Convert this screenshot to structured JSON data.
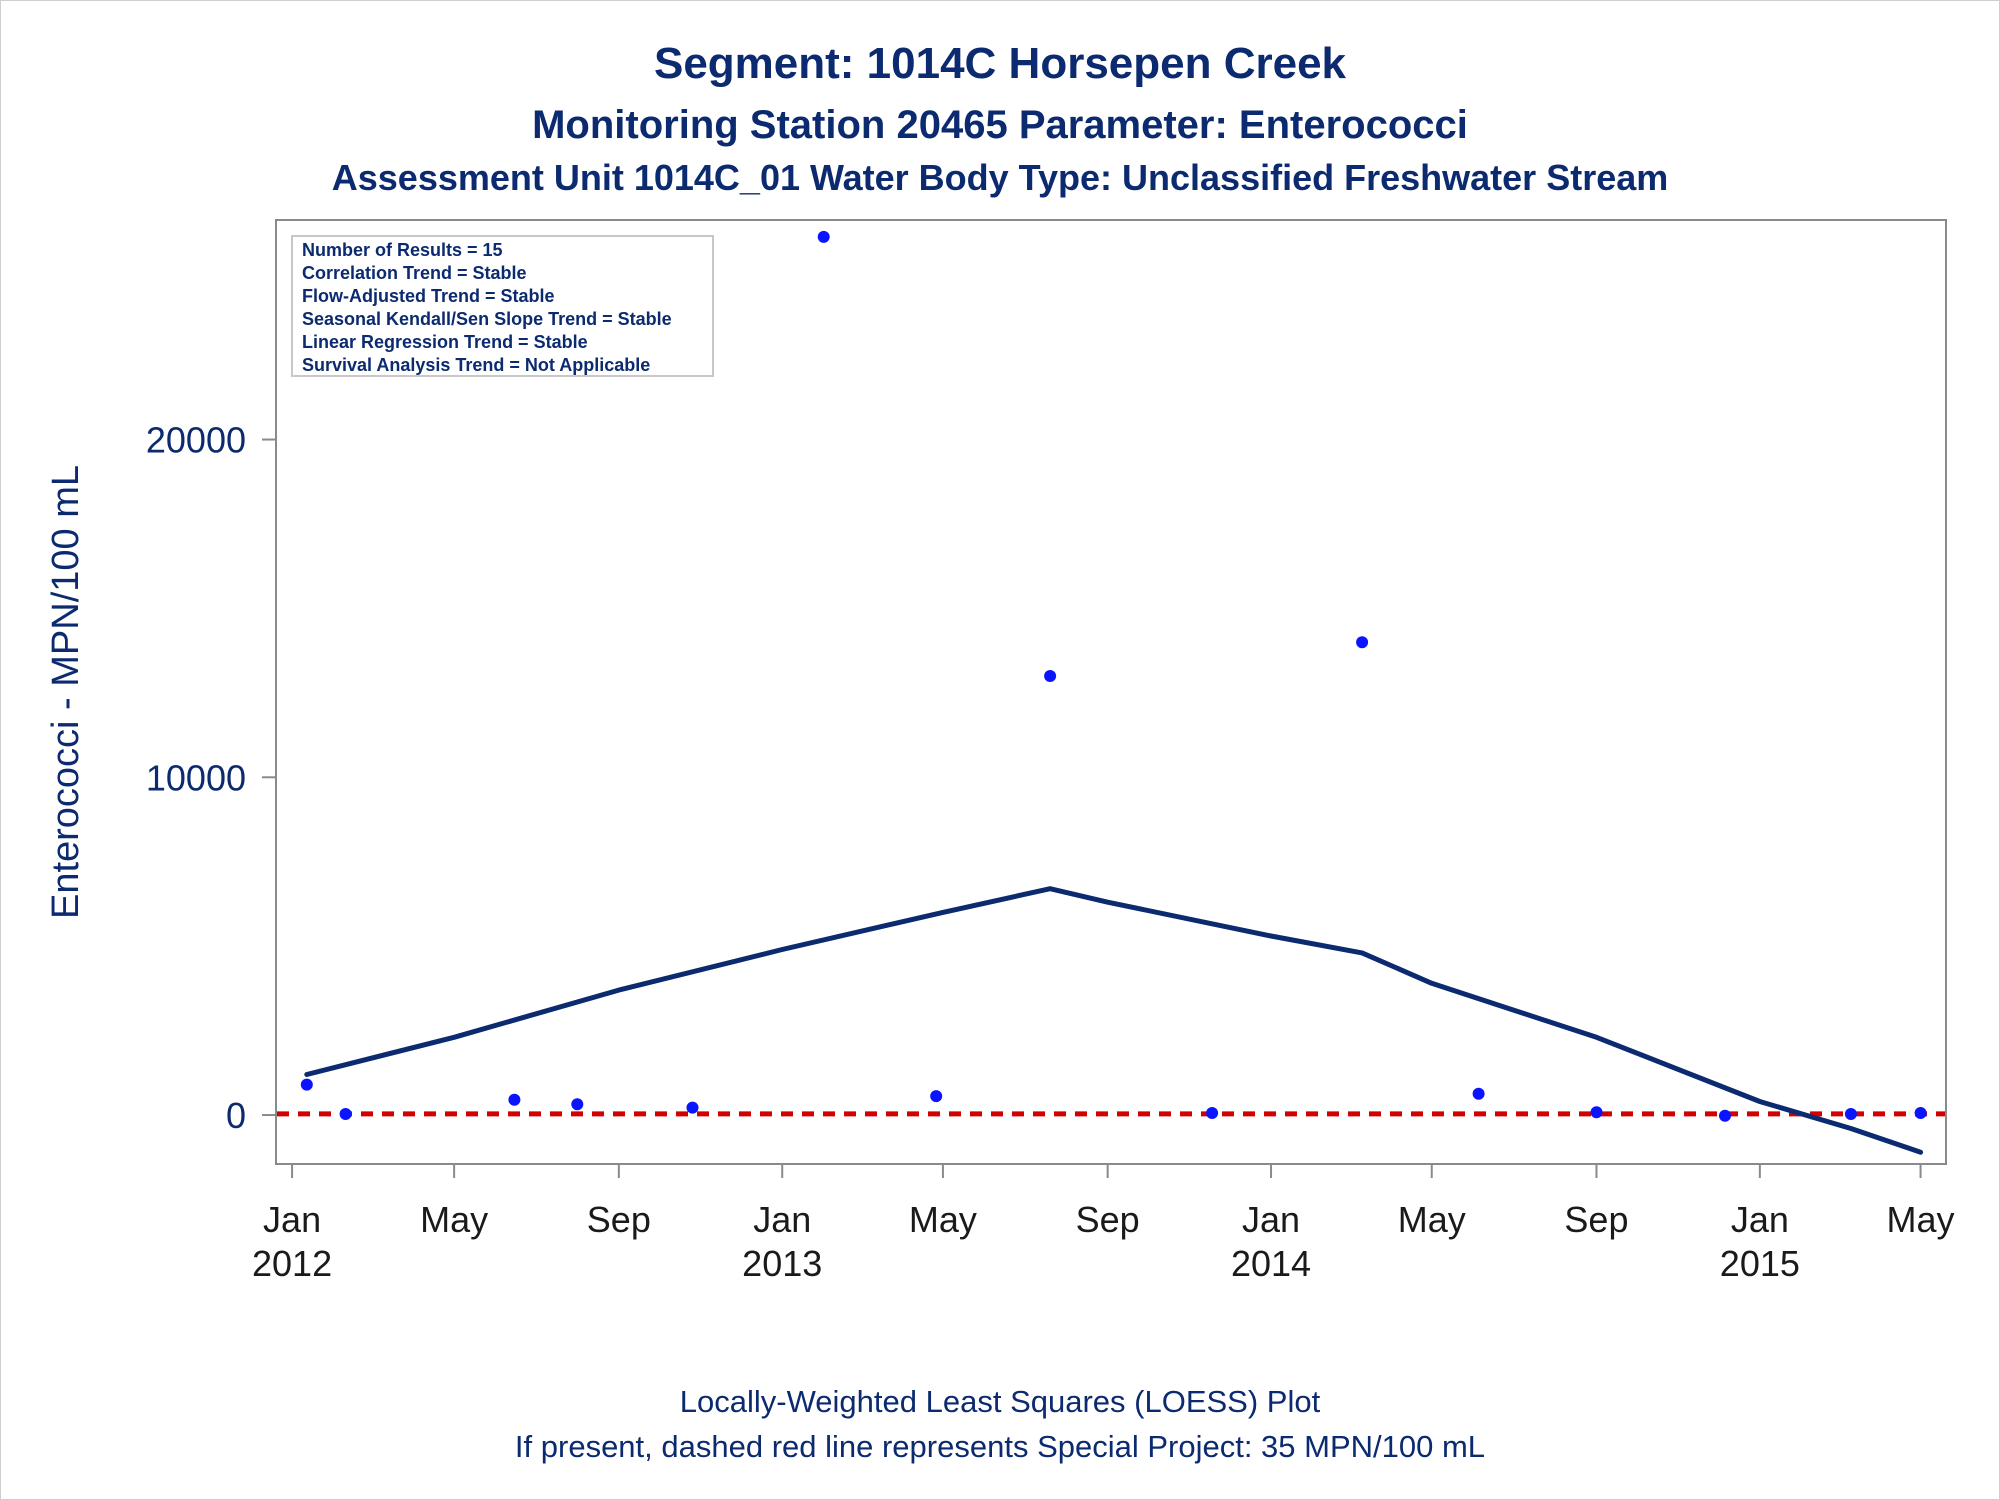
{
  "chart_data": {
    "type": "scatter",
    "title": "Segment: 1014C  Horsepen Creek",
    "subtitle1": "Monitoring Station 20465 Parameter: Enterococci",
    "subtitle2": "Assessment Unit 1014C_01   Water Body Type: Unclassified Freshwater Stream",
    "ylabel": "Enterococci - MPN/100 mL",
    "footnote1": "Locally-Weighted Least Squares (LOESS) Plot",
    "footnote2": "If present, dashed red line represents Special Project: 35 MPN/100 mL",
    "stats": [
      "Number of Results = 15",
      "Correlation Trend = Stable",
      "Flow-Adjusted Trend = Stable",
      "Seasonal Kendall/Sen Slope Trend = Stable",
      "Linear Regression Trend = Stable",
      "Survival Analysis Trend = Not Applicable"
    ],
    "xlim": [
      "2011-12-20",
      "2015-05-20"
    ],
    "ylim": [
      -1450,
      26500
    ],
    "x_ticks": [
      {
        "date": "2012-01-01",
        "line1": "Jan",
        "line2": "2012"
      },
      {
        "date": "2012-05-01",
        "line1": "May",
        "line2": ""
      },
      {
        "date": "2012-09-01",
        "line1": "Sep",
        "line2": ""
      },
      {
        "date": "2013-01-01",
        "line1": "Jan",
        "line2": "2013"
      },
      {
        "date": "2013-05-01",
        "line1": "May",
        "line2": ""
      },
      {
        "date": "2013-09-01",
        "line1": "Sep",
        "line2": ""
      },
      {
        "date": "2014-01-01",
        "line1": "Jan",
        "line2": "2014"
      },
      {
        "date": "2014-05-01",
        "line1": "May",
        "line2": ""
      },
      {
        "date": "2014-09-01",
        "line1": "Sep",
        "line2": ""
      },
      {
        "date": "2015-01-01",
        "line1": "Jan",
        "line2": "2015"
      },
      {
        "date": "2015-05-01",
        "line1": "May",
        "line2": ""
      }
    ],
    "y_ticks": [
      0,
      10000,
      20000
    ],
    "reference_line": {
      "value": 35,
      "color": "#d40000"
    },
    "points": [
      {
        "x": "2012-01-12",
        "y": 900
      },
      {
        "x": "2012-02-10",
        "y": 30
      },
      {
        "x": "2012-06-15",
        "y": 450
      },
      {
        "x": "2012-08-01",
        "y": 320
      },
      {
        "x": "2012-10-26",
        "y": 220
      },
      {
        "x": "2013-02-01",
        "y": 26000
      },
      {
        "x": "2013-04-26",
        "y": 560
      },
      {
        "x": "2013-07-20",
        "y": 13000
      },
      {
        "x": "2013-11-18",
        "y": 60
      },
      {
        "x": "2014-03-10",
        "y": 14000
      },
      {
        "x": "2014-06-05",
        "y": 630
      },
      {
        "x": "2014-09-01",
        "y": 80
      },
      {
        "x": "2014-12-06",
        "y": -20
      },
      {
        "x": "2015-03-10",
        "y": 30
      },
      {
        "x": "2015-05-01",
        "y": 60
      }
    ],
    "loess": [
      {
        "x": "2012-01-12",
        "y": 1200
      },
      {
        "x": "2012-05-01",
        "y": 2300
      },
      {
        "x": "2012-09-01",
        "y": 3700
      },
      {
        "x": "2013-01-01",
        "y": 4900
      },
      {
        "x": "2013-05-01",
        "y": 6000
      },
      {
        "x": "2013-07-20",
        "y": 6700
      },
      {
        "x": "2013-09-01",
        "y": 6300
      },
      {
        "x": "2014-01-01",
        "y": 5300
      },
      {
        "x": "2014-03-10",
        "y": 4800
      },
      {
        "x": "2014-05-01",
        "y": 3900
      },
      {
        "x": "2014-09-01",
        "y": 2300
      },
      {
        "x": "2015-01-01",
        "y": 400
      },
      {
        "x": "2015-03-10",
        "y": -400
      },
      {
        "x": "2015-05-01",
        "y": -1100
      }
    ],
    "colors": {
      "points": "#0a14ff",
      "loess": "#0b2a6f",
      "axis": "#8a8a8a",
      "text": "#0b2a6f"
    }
  }
}
